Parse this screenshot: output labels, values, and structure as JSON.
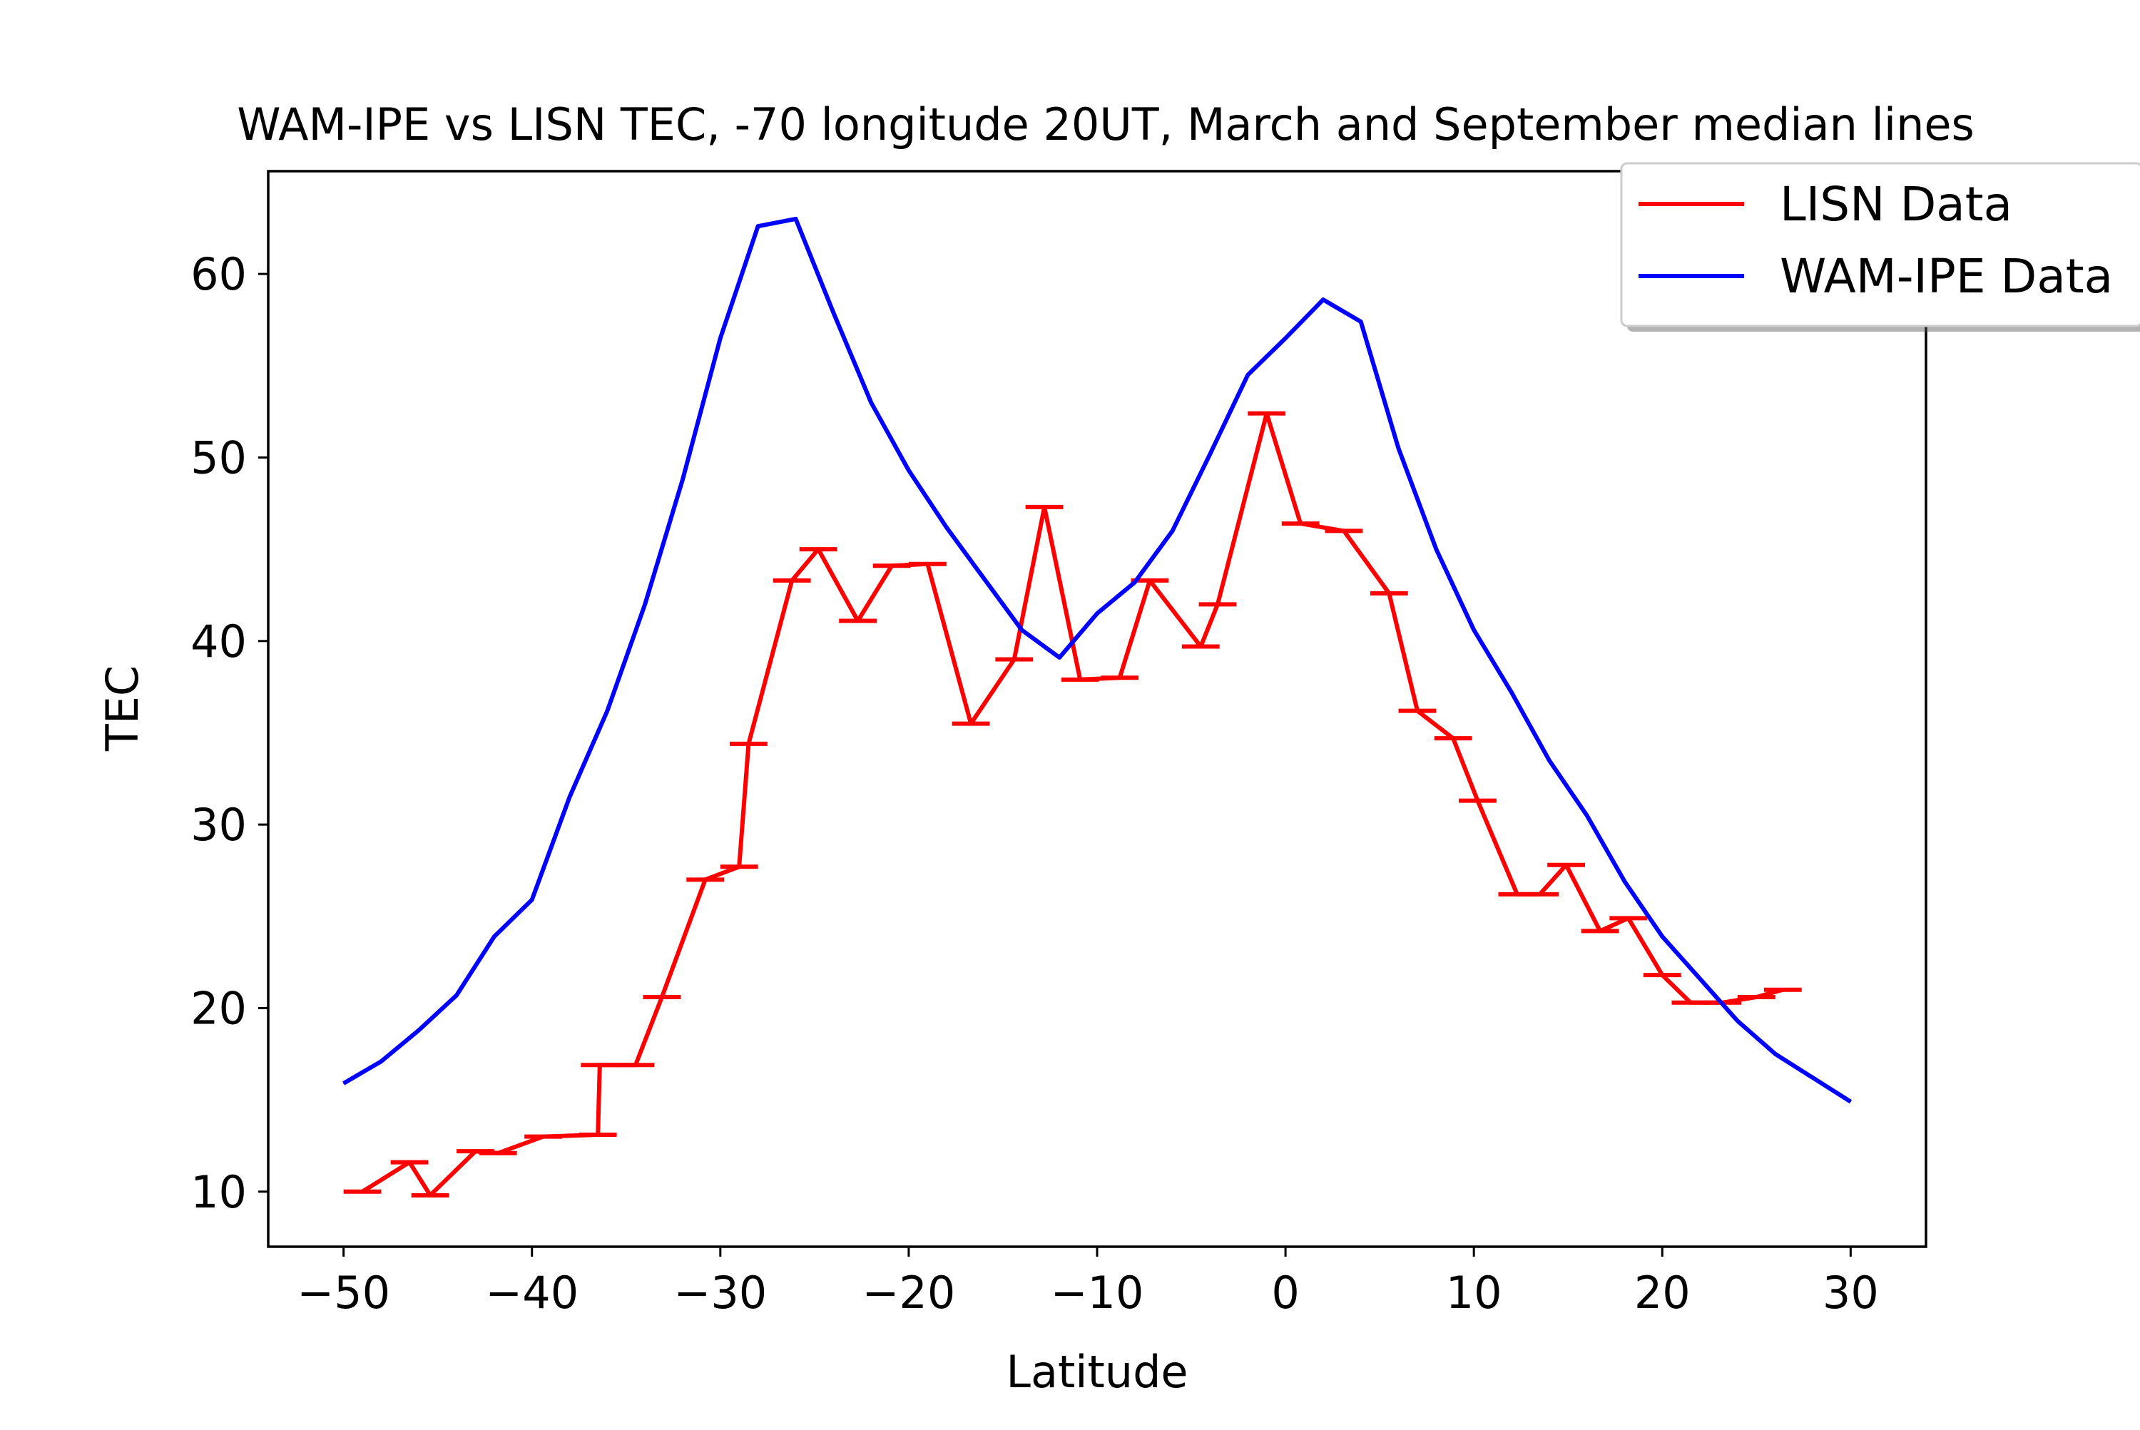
{
  "chart_data": {
    "type": "line",
    "title": "WAM-IPE vs LISN TEC, -70 longitude 20UT, March and September median lines",
    "xlabel": "Latitude",
    "ylabel": "TEC",
    "xlim": [
      -54,
      34
    ],
    "ylim": [
      7,
      65.6
    ],
    "xticks": [
      -50,
      -40,
      -30,
      -20,
      -10,
      0,
      10,
      20,
      30
    ],
    "xtick_labels": [
      "−50",
      "−40",
      "−30",
      "−20",
      "−10",
      "0",
      "10",
      "20",
      "30"
    ],
    "yticks": [
      10,
      20,
      30,
      40,
      50,
      60
    ],
    "ytick_labels": [
      "10",
      "20",
      "30",
      "40",
      "50",
      "60"
    ],
    "grid": false,
    "legend_position": "top-right",
    "series": [
      {
        "name": "LISN Data",
        "color": "#ff0000",
        "style": "line-with-horizontal-caps",
        "cap_half_width": 1.0,
        "x": [
          -49.0,
          -46.5,
          -45.4,
          -43.0,
          -41.8,
          -39.4,
          -36.5,
          -36.4,
          -34.5,
          -33.1,
          -30.8,
          -29.0,
          -28.5,
          -26.2,
          -24.8,
          -22.7,
          -20.9,
          -19.0,
          -16.7,
          -14.4,
          -12.8,
          -10.9,
          -8.8,
          -7.2,
          -4.5,
          -3.6,
          -1.0,
          0.8,
          3.1,
          5.5,
          7.0,
          8.9,
          10.2,
          12.3,
          13.5,
          14.9,
          16.7,
          18.2,
          20.0,
          21.5,
          23.2,
          25.0,
          26.4
        ],
        "y": [
          10.0,
          11.6,
          9.8,
          12.2,
          12.1,
          13.0,
          13.1,
          16.9,
          16.9,
          20.6,
          27.0,
          27.7,
          34.4,
          43.3,
          45.0,
          41.1,
          44.1,
          44.2,
          35.5,
          39.0,
          47.3,
          37.9,
          38.0,
          43.3,
          39.7,
          42.0,
          52.4,
          46.4,
          46.0,
          42.6,
          36.2,
          34.7,
          31.3,
          26.2,
          26.2,
          27.8,
          24.2,
          24.9,
          21.8,
          20.3,
          20.3,
          20.6,
          21.0
        ]
      },
      {
        "name": "WAM-IPE Data",
        "color": "#0000ff",
        "x": [
          -50,
          -48,
          -46,
          -44,
          -42,
          -40,
          -38,
          -36,
          -34,
          -32,
          -30,
          -28,
          -26,
          -24,
          -22,
          -20,
          -18,
          -16,
          -14,
          -12,
          -10,
          -8,
          -6,
          -4,
          -2,
          0,
          2,
          4,
          6,
          8,
          10,
          12,
          14,
          16,
          18,
          20,
          22,
          24,
          26,
          28,
          30
        ],
        "y": [
          15.9,
          17.1,
          18.8,
          20.7,
          23.9,
          25.9,
          31.5,
          36.2,
          42.0,
          48.8,
          56.5,
          62.6,
          63.0,
          57.9,
          53.0,
          49.3,
          46.2,
          43.4,
          40.6,
          39.1,
          41.5,
          43.2,
          46.0,
          50.2,
          54.5,
          56.5,
          58.6,
          57.4,
          50.5,
          45.0,
          40.6,
          37.2,
          33.5,
          30.5,
          26.9,
          23.9,
          21.6,
          19.3,
          17.5,
          16.2,
          14.9
        ]
      }
    ]
  }
}
